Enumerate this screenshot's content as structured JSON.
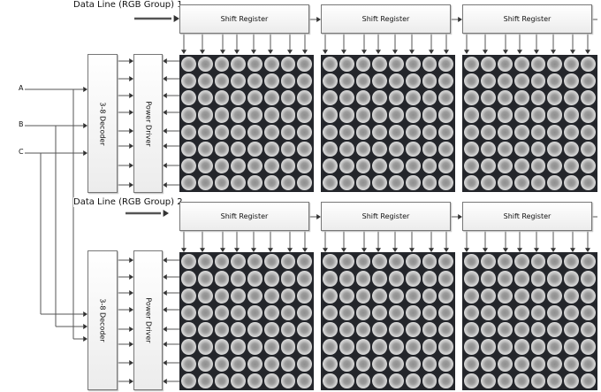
{
  "diagram": {
    "data_lines": [
      {
        "label": "Data Line (RGB Group) 1"
      },
      {
        "label": "Data Line (RGB Group) 2"
      }
    ],
    "shift_register_label": "Shift Register",
    "decoder_label": "3-8 Decoder",
    "driver_label": "Power Driver",
    "address_inputs": [
      "A",
      "B",
      "C"
    ],
    "groups": 2,
    "matrices_per_group": 3,
    "matrix_size": "8x8",
    "colors": {
      "box_border": "#777777",
      "line": "#555555",
      "matrix_bg": "#24262b"
    }
  }
}
